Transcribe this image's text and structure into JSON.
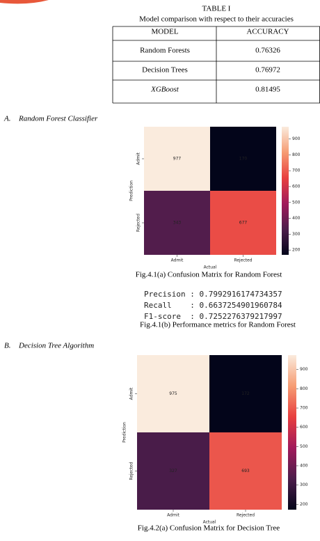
{
  "table": {
    "number": "TABLE I",
    "caption": "Model comparison with respect to their accuracies",
    "header": [
      "MODEL",
      "ACCURACY"
    ],
    "rows": [
      [
        "Random Forests",
        "0.76326"
      ],
      [
        "Decision Trees",
        "0.76972"
      ],
      [
        "XGBoost",
        "0.81495"
      ]
    ]
  },
  "sections": [
    {
      "label": "A.",
      "title": "Random Forest Classifier",
      "figure_caption": "Fig.4.1(a) Confusion Matrix for Random Forest",
      "metrics": [
        "Precision : 0.7992916174734357",
        "Recall    : 0.6637254901960784",
        "F1-score  : 0.7252276379217997"
      ],
      "metrics_caption": "Fig.4.1(b) Performance metrics for Random Forest"
    },
    {
      "label": "B.",
      "title": "Decision Tree Algorithm",
      "figure_caption": "Fig.4.2(a) Confusion Matrix for Decision Tree"
    }
  ],
  "chart_data": [
    {
      "type": "heatmap",
      "x_categories": [
        "Admit",
        "Rejected"
      ],
      "y_categories": [
        "Admit",
        "Rejected"
      ],
      "values": [
        [
          977,
          170
        ],
        [
          343,
          677
        ]
      ],
      "xlabel": "Actual",
      "ylabel": "Prediction",
      "colormap": "rocket",
      "clim": [
        170,
        977
      ],
      "colorbar_ticks": [
        200,
        300,
        400,
        500,
        600,
        700,
        800,
        900
      ]
    },
    {
      "type": "heatmap",
      "x_categories": [
        "Admit",
        "Rejected"
      ],
      "y_categories": [
        "Admit",
        "Rejected"
      ],
      "values": [
        [
          975,
          172
        ],
        [
          327,
          693
        ]
      ],
      "xlabel": "Actual",
      "ylabel": "Prediction",
      "colormap": "rocket",
      "clim": [
        172,
        975
      ],
      "colorbar_ticks": [
        200,
        300,
        400,
        500,
        600,
        700,
        800,
        900
      ]
    }
  ]
}
